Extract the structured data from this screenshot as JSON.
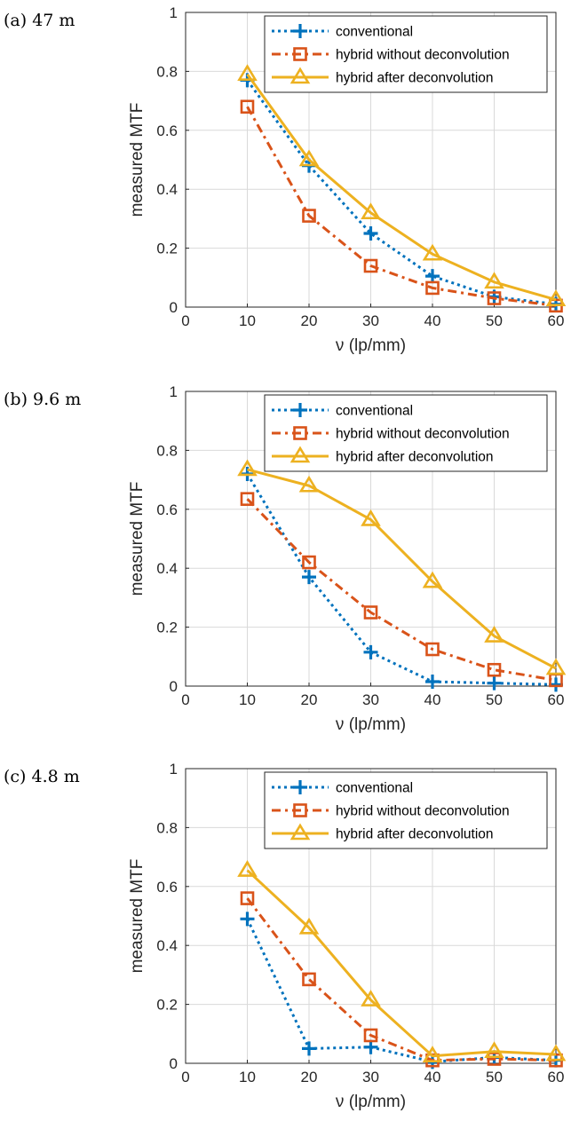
{
  "colors": {
    "conventional": "#0072BD",
    "hybrid_without": "#D95319",
    "hybrid_after": "#EDB120",
    "grid": "#d9d9d9",
    "axis": "#262626"
  },
  "chart_data": [
    {
      "type": "line",
      "panel_label": "(a) 47 m",
      "xlabel": "ν (lp/mm)",
      "ylabel": "measured MTF",
      "xlim": [
        0,
        60
      ],
      "ylim": [
        0,
        1
      ],
      "xticks": [
        "0",
        "10",
        "20",
        "30",
        "40",
        "50",
        "60"
      ],
      "yticks": [
        "0",
        "0.2",
        "0.4",
        "0.6",
        "0.8",
        "1"
      ],
      "grid": true,
      "legend_position": "top-right",
      "x": [
        10,
        20,
        30,
        40,
        50,
        60
      ],
      "series": [
        {
          "name": "conventional",
          "values": [
            0.77,
            0.48,
            0.25,
            0.105,
            0.035,
            0.01
          ]
        },
        {
          "name": "hybrid without deconvolution",
          "values": [
            0.68,
            0.31,
            0.14,
            0.065,
            0.03,
            0.005
          ]
        },
        {
          "name": "hybrid after deconvolution",
          "values": [
            0.79,
            0.5,
            0.32,
            0.18,
            0.085,
            0.025
          ]
        }
      ]
    },
    {
      "type": "line",
      "panel_label": "(b) 9.6 m",
      "xlabel": "ν (lp/mm)",
      "ylabel": "measured MTF",
      "xlim": [
        0,
        60
      ],
      "ylim": [
        0,
        1
      ],
      "xticks": [
        "0",
        "10",
        "20",
        "30",
        "40",
        "50",
        "60"
      ],
      "yticks": [
        "0",
        "0.2",
        "0.4",
        "0.6",
        "0.8",
        "1"
      ],
      "grid": true,
      "legend_position": "top-right",
      "x": [
        10,
        20,
        30,
        40,
        50,
        60
      ],
      "series": [
        {
          "name": "conventional",
          "values": [
            0.72,
            0.37,
            0.115,
            0.015,
            0.01,
            0.005
          ]
        },
        {
          "name": "hybrid without deconvolution",
          "values": [
            0.635,
            0.42,
            0.25,
            0.125,
            0.055,
            0.02
          ]
        },
        {
          "name": "hybrid after deconvolution",
          "values": [
            0.735,
            0.68,
            0.565,
            0.355,
            0.17,
            0.06
          ]
        }
      ]
    },
    {
      "type": "line",
      "panel_label": "(c) 4.8 m",
      "xlabel": "ν (lp/mm)",
      "ylabel": "measured MTF",
      "xlim": [
        0,
        60
      ],
      "ylim": [
        0,
        1
      ],
      "xticks": [
        "0",
        "10",
        "20",
        "30",
        "40",
        "50",
        "60"
      ],
      "yticks": [
        "0",
        "0.2",
        "0.4",
        "0.6",
        "0.8",
        "1"
      ],
      "grid": true,
      "legend_position": "top-right",
      "x": [
        10,
        20,
        30,
        40,
        50,
        60
      ],
      "series": [
        {
          "name": "conventional",
          "values": [
            0.49,
            0.05,
            0.055,
            0.005,
            0.02,
            0.01
          ]
        },
        {
          "name": "hybrid without deconvolution",
          "values": [
            0.56,
            0.285,
            0.095,
            0.01,
            0.015,
            0.01
          ]
        },
        {
          "name": "hybrid after deconvolution",
          "values": [
            0.655,
            0.46,
            0.215,
            0.025,
            0.04,
            0.03
          ]
        }
      ]
    }
  ]
}
